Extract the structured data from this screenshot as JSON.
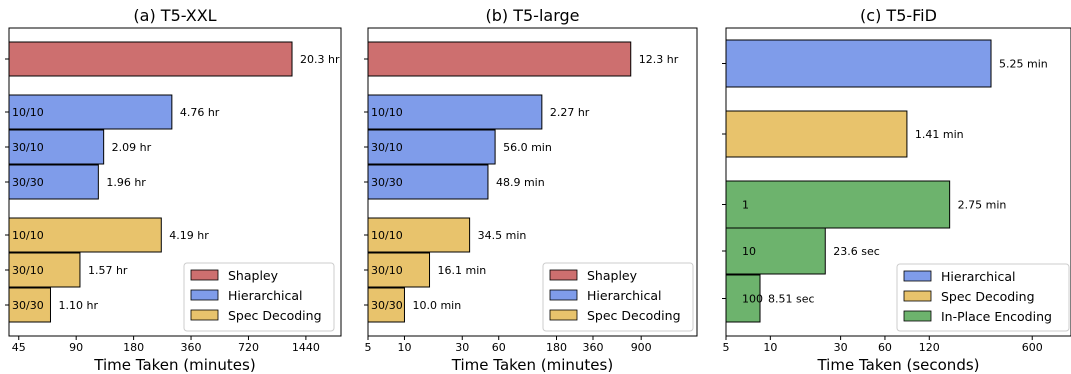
{
  "colors": {
    "shapley": "#CD6F6F",
    "hierarchical": "#7F9CEA",
    "spec_decoding": "#E8C36C",
    "in_place": "#6DB36D"
  },
  "chart_data": [
    {
      "type": "bar",
      "orientation": "horizontal",
      "title": "(a) T5-XXL",
      "xlabel": "Time Taken (minutes)",
      "xscale": "log",
      "xlim": [
        40,
        2200
      ],
      "xticks": [
        45,
        90,
        180,
        360,
        720,
        1440
      ],
      "legend": {
        "placement": "bottom-right",
        "entries": [
          "Shapley",
          "Hierarchical",
          "Spec Decoding"
        ]
      },
      "bars": [
        {
          "series": "Shapley",
          "label": "",
          "value": 1218,
          "value_label": "20.3 hr"
        },
        {
          "series": "Hierarchical",
          "label": "10/10",
          "value": 285.6,
          "value_label": "4.76 hr"
        },
        {
          "series": "Hierarchical",
          "label": "30/10",
          "value": 125.4,
          "value_label": "2.09 hr"
        },
        {
          "series": "Hierarchical",
          "label": "30/30",
          "value": 117.6,
          "value_label": "1.96 hr"
        },
        {
          "series": "Spec Decoding",
          "label": "10/10",
          "value": 251.4,
          "value_label": "4.19 hr"
        },
        {
          "series": "Spec Decoding",
          "label": "30/10",
          "value": 94.2,
          "value_label": "1.57 hr"
        },
        {
          "series": "Spec Decoding",
          "label": "30/30",
          "value": 66.0,
          "value_label": "1.10 hr"
        }
      ]
    },
    {
      "type": "bar",
      "orientation": "horizontal",
      "title": "(b) T5-large",
      "xlabel": "Time Taken (minutes)",
      "xscale": "log",
      "xlim": [
        5,
        2600
      ],
      "xticks": [
        5,
        10,
        30,
        60,
        180,
        360,
        900
      ],
      "legend": {
        "placement": "bottom-right",
        "entries": [
          "Shapley",
          "Hierarchical",
          "Spec Decoding"
        ]
      },
      "bars": [
        {
          "series": "Shapley",
          "label": "",
          "value": 738,
          "value_label": "12.3 hr"
        },
        {
          "series": "Hierarchical",
          "label": "10/10",
          "value": 136.2,
          "value_label": "2.27 hr"
        },
        {
          "series": "Hierarchical",
          "label": "30/10",
          "value": 56.0,
          "value_label": "56.0 min"
        },
        {
          "series": "Hierarchical",
          "label": "30/30",
          "value": 48.9,
          "value_label": "48.9 min"
        },
        {
          "series": "Spec Decoding",
          "label": "10/10",
          "value": 34.5,
          "value_label": "34.5 min"
        },
        {
          "series": "Spec Decoding",
          "label": "30/10",
          "value": 16.1,
          "value_label": "16.1 min"
        },
        {
          "series": "Spec Decoding",
          "label": "30/30",
          "value": 10.0,
          "value_label": "10.0 min"
        }
      ]
    },
    {
      "type": "bar",
      "orientation": "horizontal",
      "title": "(c) T5-FiD",
      "xlabel": "Time Taken (seconds)",
      "xscale": "log",
      "xlim": [
        5,
        1100
      ],
      "xticks": [
        5,
        10,
        30,
        60,
        120,
        600
      ],
      "legend": {
        "placement": "bottom-right",
        "entries": [
          "Hierarchical",
          "Spec Decoding",
          "In-Place Encoding"
        ]
      },
      "bars": [
        {
          "series": "Hierarchical",
          "label": "",
          "value": 315,
          "value_label": "5.25 min"
        },
        {
          "series": "Spec Decoding",
          "label": "",
          "value": 84.6,
          "value_label": "1.41 min"
        },
        {
          "series": "In-Place Encoding",
          "label": "1",
          "value": 165,
          "value_label": "2.75 min"
        },
        {
          "series": "In-Place Encoding",
          "label": "10",
          "value": 23.6,
          "value_label": "23.6 sec"
        },
        {
          "series": "In-Place Encoding",
          "label": "100",
          "value": 8.51,
          "value_label": "8.51 sec"
        }
      ]
    }
  ]
}
